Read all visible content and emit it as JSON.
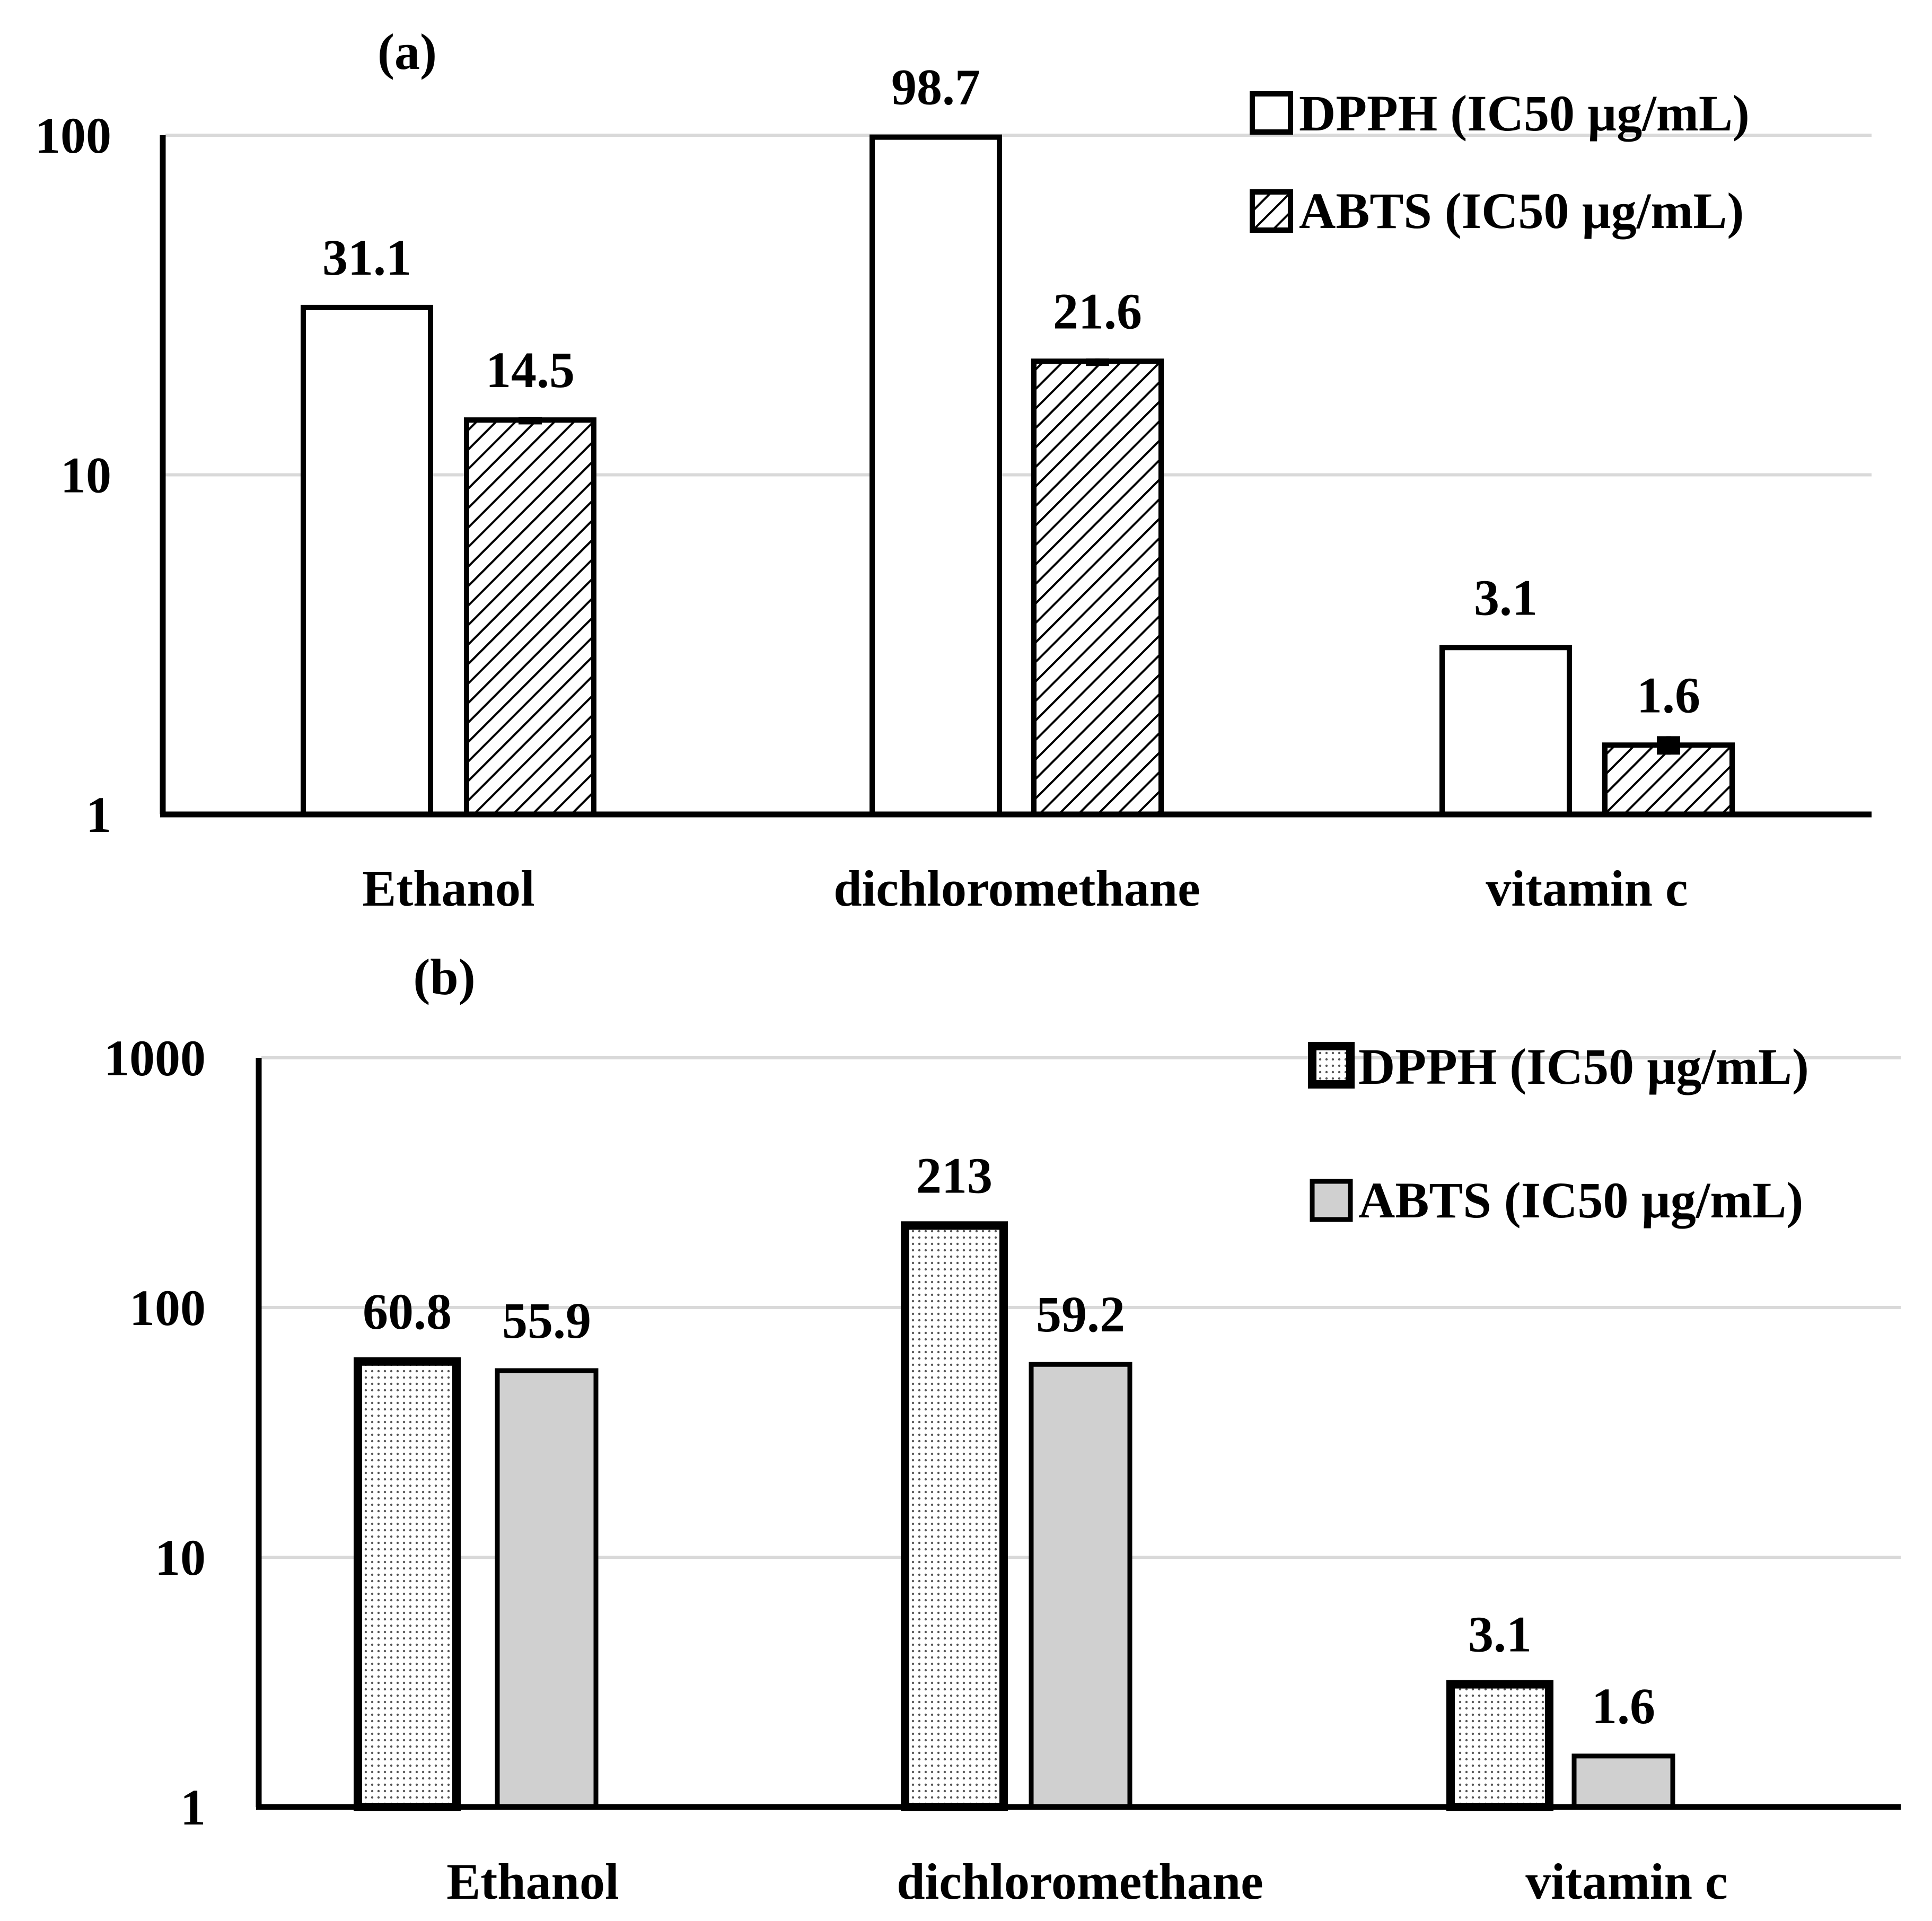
{
  "chart_data": [
    {
      "panel_label": "(a)",
      "type": "bar",
      "y_scale": "log",
      "ylim": [
        1,
        100
      ],
      "y_ticks": [
        "1",
        "10",
        "100"
      ],
      "grid": true,
      "legend_position": "top-right",
      "categories": [
        "Ethanol",
        "dichloromethane",
        "vitamin c"
      ],
      "series": [
        {
          "name": "DPPH (IC50 µg/mL)",
          "values": [
            31.1,
            98.7,
            3.1
          ],
          "labels": [
            "31.1",
            "98.7",
            "3.1"
          ],
          "style": "open",
          "errors": [
            0,
            0,
            0
          ]
        },
        {
          "name": "ABTS (IC50 µg/mL)",
          "values": [
            14.5,
            21.6,
            1.6
          ],
          "labels": [
            "14.5",
            "21.6",
            "1.6"
          ],
          "style": "hatched",
          "errors": [
            0.3,
            0.4,
            0.1
          ]
        }
      ]
    },
    {
      "panel_label": "(b)",
      "type": "bar",
      "y_scale": "log",
      "ylim": [
        1,
        1000
      ],
      "y_ticks": [
        "1",
        "10",
        "100",
        "1000"
      ],
      "grid": true,
      "legend_position": "top-right",
      "categories": [
        "Ethanol",
        "dichloromethane",
        "vitamin c"
      ],
      "series": [
        {
          "name": "DPPH (IC50 µg/mL)",
          "values": [
            60.8,
            213,
            3.1
          ],
          "labels": [
            "60.8",
            "213",
            "3.1"
          ],
          "style": "dotted",
          "errors": [
            0,
            0,
            0
          ]
        },
        {
          "name": "ABTS (IC50 µg/mL)",
          "values": [
            55.9,
            59.2,
            1.6
          ],
          "labels": [
            "55.9",
            "59.2",
            "1.6"
          ],
          "style": "gray",
          "errors": [
            0,
            0,
            0
          ]
        }
      ]
    }
  ]
}
